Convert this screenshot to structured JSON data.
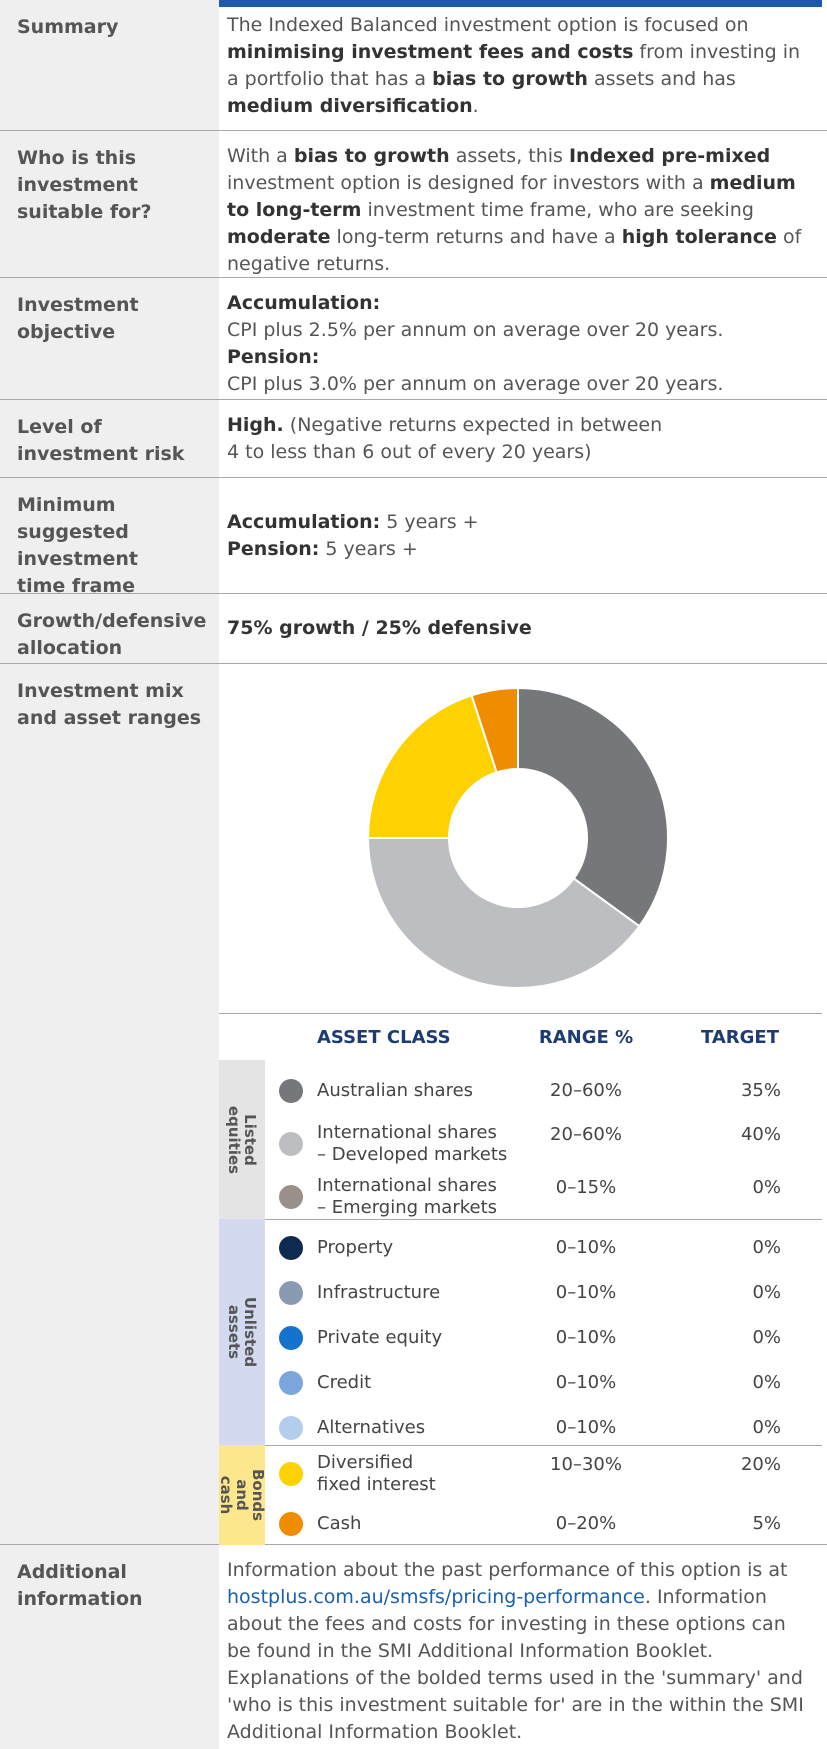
{
  "rows": [
    {
      "label": "Summary",
      "content": [
        [
          {
            "text": "The Indexed Balanced investment option is focused on "
          },
          {
            "text": "minimising investment fees and costs",
            "bold": true
          },
          {
            "text": " from investing in a portfolio that has a "
          },
          {
            "text": "bias to growth",
            "bold": true
          },
          {
            "text": " assets and has "
          },
          {
            "text": "medium diversification",
            "bold": true
          },
          {
            "text": "."
          }
        ]
      ]
    },
    {
      "label": "Who is this\ninvestment\nsuitable for?",
      "content": [
        [
          {
            "text": "With a "
          },
          {
            "text": "bias to growth",
            "bold": true
          },
          {
            "text": " assets, this "
          },
          {
            "text": "Indexed pre-mixed",
            "bold": true
          },
          {
            "text": " investment option is designed for investors with a "
          },
          {
            "text": "medium to long-term",
            "bold": true
          },
          {
            "text": " investment time frame, who are seeking "
          },
          {
            "text": "moderate",
            "bold": true
          },
          {
            "text": " long-term returns and have a "
          },
          {
            "text": "high tolerance",
            "bold": true
          },
          {
            "text": " of negative returns."
          }
        ]
      ]
    },
    {
      "label": "Investment\nobjective",
      "content": [
        [
          {
            "text": "Accumulation:",
            "bold": true
          }
        ],
        [
          {
            "text": "CPI plus 2.5% per annum on average over 20 years."
          }
        ],
        [
          {
            "text": "Pension:",
            "bold": true
          }
        ],
        [
          {
            "text": "CPI plus 3.0% per annum on average over 20 years."
          }
        ]
      ]
    },
    {
      "label": "Level of\ninvestment risk",
      "content": [
        [
          {
            "text": "High.",
            "bold": true
          },
          {
            "text": " (Negative returns expected in between"
          }
        ],
        [
          {
            "text": "4 to less than 6 out of every 20 years)"
          }
        ]
      ]
    },
    {
      "label": "Minimum\nsuggested\ninvestment\ntime frame",
      "content": [
        [
          {
            "text": "Accumulation:",
            "bold": true
          },
          {
            "text": " 5 years +"
          }
        ],
        [
          {
            "text": "Pension:",
            "bold": true
          },
          {
            "text": " 5 years +"
          }
        ]
      ]
    },
    {
      "label": "Growth/defensive\nallocation",
      "content": [
        [
          {
            "text": "75% growth / 25% defensive",
            "bold": true
          }
        ]
      ]
    },
    {
      "label": "Investment mix\nand asset ranges",
      "content": []
    },
    {
      "label": "Additional\ninformation",
      "content": [
        [
          {
            "text": "Information about the past performance of this option is at "
          },
          {
            "text": "hostplus.com.au/smsfs/pricing-performance",
            "link": true
          },
          {
            "text": ". Information about the fees and costs for investing in these options can be found in the SMI Additional Information Booklet. Explanations of the bolded terms used in the 'summary' and 'who is this investment suitable for' are in the within the SMI Additional Information Booklet."
          }
        ]
      ]
    }
  ],
  "assets": {
    "headers": [
      "ASSET CLASS",
      "RANGE %",
      "TARGET"
    ],
    "groups": [
      {
        "name": "Listed equities",
        "color": "#e4e4e4",
        "rows": [
          {
            "name": "Australian shares",
            "range": "20–60%",
            "target": 35,
            "target_label": "35%",
            "color": "#76777a"
          },
          {
            "name": "International shares\n– Developed markets",
            "range": "20–60%",
            "target": 40,
            "target_label": "40%",
            "color": "#bdbec1"
          },
          {
            "name": "International shares\n– Emerging markets",
            "range": "0–15%",
            "target": 0,
            "target_label": "0%",
            "color": "#9b8f8a"
          }
        ]
      },
      {
        "name": "Unlisted assets",
        "color": "#d3daf0",
        "rows": [
          {
            "name": "Property",
            "range": "0–10%",
            "target": 0,
            "target_label": "0%",
            "color": "#0f2a4f"
          },
          {
            "name": "Infrastructure",
            "range": "0–10%",
            "target": 0,
            "target_label": "0%",
            "color": "#8a9ab0"
          },
          {
            "name": "Private equity",
            "range": "0–10%",
            "target": 0,
            "target_label": "0%",
            "color": "#1573d0"
          },
          {
            "name": "Credit",
            "range": "0–10%",
            "target": 0,
            "target_label": "0%",
            "color": "#7ba6dc"
          },
          {
            "name": "Alternatives",
            "range": "0–10%",
            "target": 0,
            "target_label": "0%",
            "color": "#b4cdec"
          }
        ]
      },
      {
        "name": "Bonds\nand cash",
        "color": "#fde78c",
        "rows": [
          {
            "name": "Diversified\nfixed interest",
            "range": "10–30%",
            "target": 20,
            "target_label": "20%",
            "color": "#fdd200"
          },
          {
            "name": "Cash",
            "range": "0–20%",
            "target": 5,
            "target_label": "5%",
            "color": "#f08c00"
          }
        ]
      }
    ]
  }
}
